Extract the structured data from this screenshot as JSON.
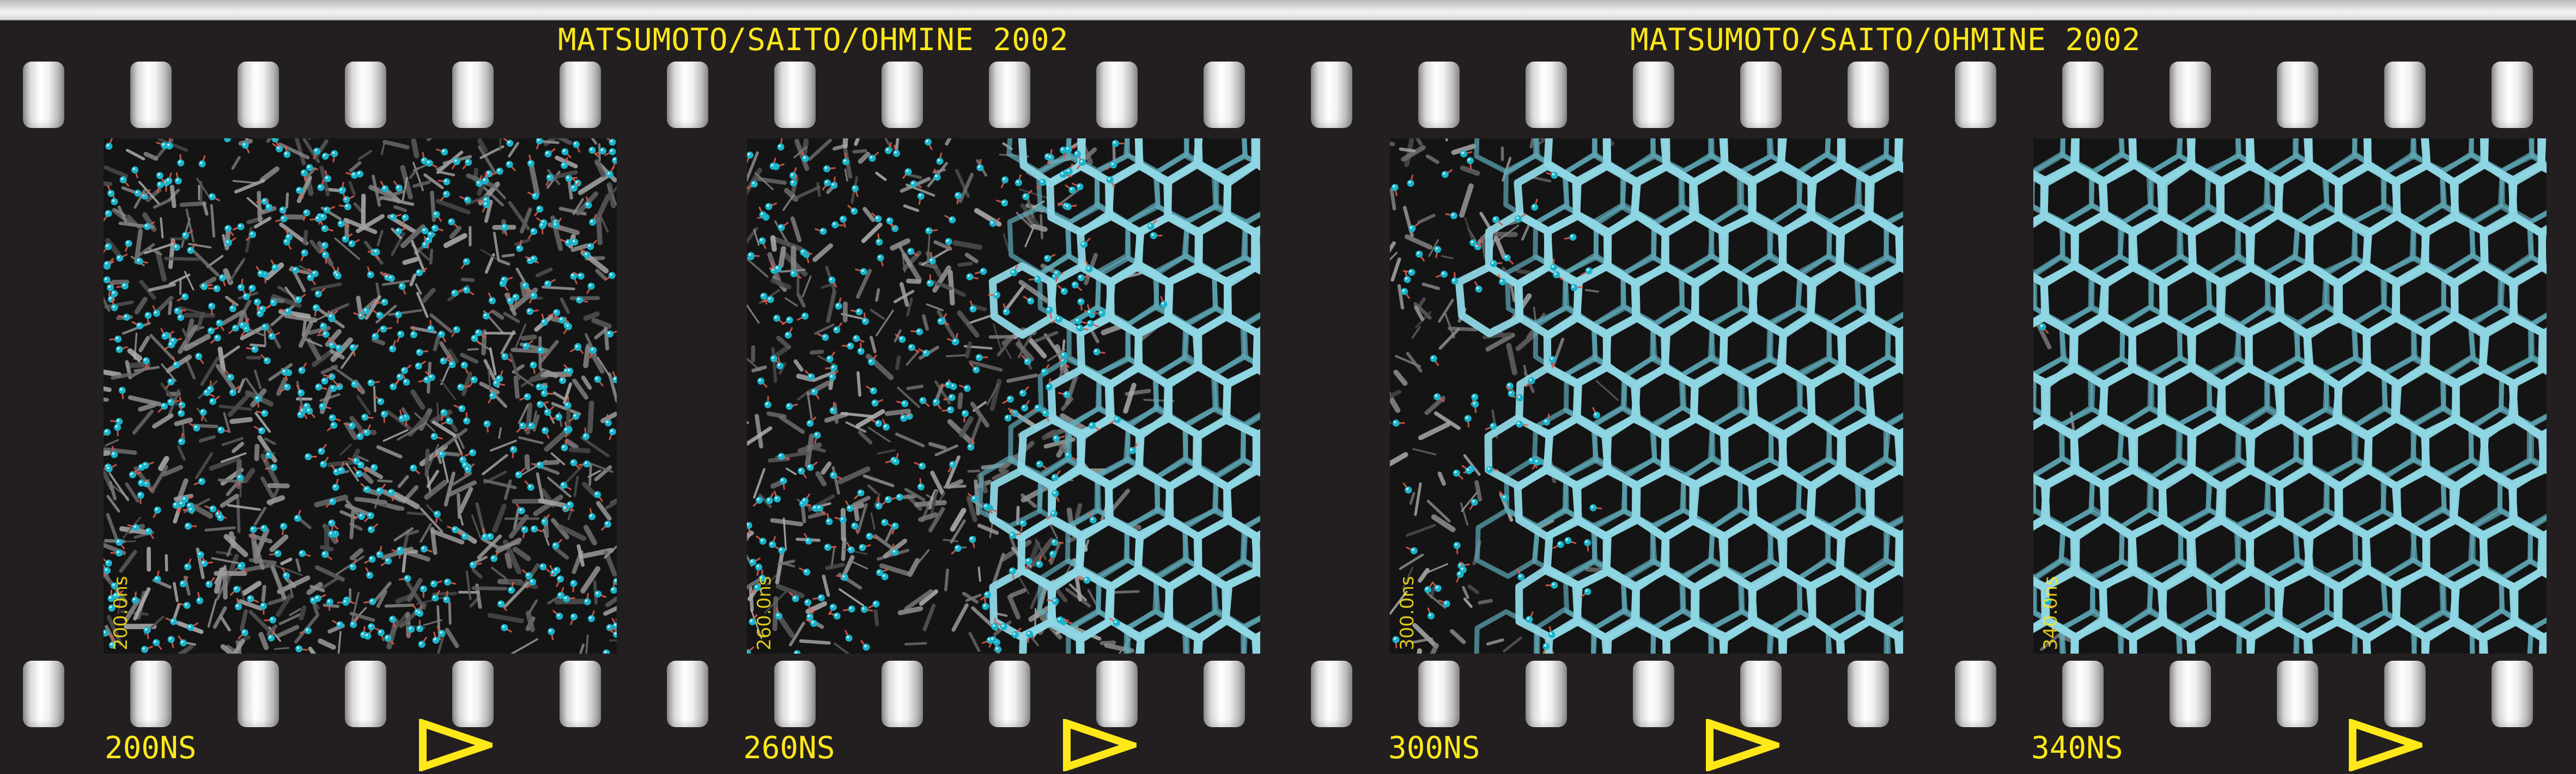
{
  "header": {
    "captions": [
      "MATSUMOTO/SAITO/OHMINE 2002",
      "MATSUMOTO/SAITO/OHMINE 2002"
    ]
  },
  "frames": [
    {
      "time_inset": "200.0ns",
      "label": "200NS",
      "hexagon_network_fraction": 0.0
    },
    {
      "time_inset": "260.0ns",
      "label": "260NS",
      "hexagon_network_fraction": 0.3
    },
    {
      "time_inset": "300.0ns",
      "label": "300NS",
      "hexagon_network_fraction": 0.65
    },
    {
      "time_inset": "340.0ns",
      "label": "340NS",
      "hexagon_network_fraction": 1.0
    }
  ],
  "colors": {
    "film": "#231f20",
    "text": "#ffe81a",
    "ice_bond": "#8fd6e4",
    "oxygen_atom": "#1bb3c9",
    "hydrogen_bond_red": "#d85a4a",
    "liquid_bond": "#9a9a9a"
  },
  "icons": {
    "sprocket": "film-perforation-icon",
    "direction": "frame-advance-triangle-icon"
  }
}
